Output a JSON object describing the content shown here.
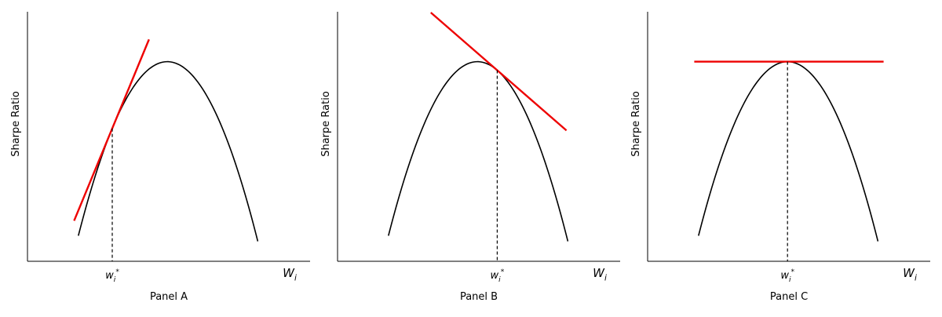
{
  "chart_data": [
    {
      "type": "line",
      "panel_label": "Panel A",
      "ylabel": "Sharpe Ratio",
      "xaxis_label": "W",
      "xaxis_label_sub": "i",
      "tick_label": "w",
      "tick_sub": "i",
      "tick_sup": "*",
      "xlim": [
        0,
        1
      ],
      "ylim": [
        0,
        1
      ],
      "curve": {
        "type": "parabola",
        "peak_x": 0.495,
        "peak_y": 0.8,
        "x_start": 0.18,
        "x_end": 0.815,
        "y_end": 0.08,
        "color": "#000000"
      },
      "tangent_point_x": 0.3,
      "tangent_segment_x": [
        0.165,
        0.43
      ],
      "tangent_color": "#ee0000"
    },
    {
      "type": "line",
      "panel_label": "Panel B",
      "ylabel": "Sharpe Ratio",
      "xaxis_label": "W",
      "xaxis_label_sub": "i",
      "tick_label": "w",
      "tick_sub": "i",
      "tick_sup": "*",
      "xlim": [
        0,
        1
      ],
      "ylim": [
        0,
        1
      ],
      "curve": {
        "type": "parabola",
        "peak_x": 0.495,
        "peak_y": 0.8,
        "x_start": 0.18,
        "x_end": 0.815,
        "y_end": 0.08,
        "color": "#000000"
      },
      "tangent_point_x": 0.565,
      "tangent_segment_x": [
        0.33,
        0.81
      ],
      "tangent_color": "#ee0000"
    },
    {
      "type": "line",
      "panel_label": "Panel C",
      "ylabel": "Sharpe Ratio",
      "xaxis_label": "W",
      "xaxis_label_sub": "i",
      "tick_label": "w",
      "tick_sub": "i",
      "tick_sup": "*",
      "xlim": [
        0,
        1
      ],
      "ylim": [
        0,
        1
      ],
      "curve": {
        "type": "parabola",
        "peak_x": 0.495,
        "peak_y": 0.8,
        "x_start": 0.18,
        "x_end": 0.815,
        "y_end": 0.08,
        "color": "#000000"
      },
      "tangent_point_x": 0.495,
      "tangent_segment_x": [
        0.165,
        0.835
      ],
      "tangent_color": "#ee0000"
    }
  ]
}
